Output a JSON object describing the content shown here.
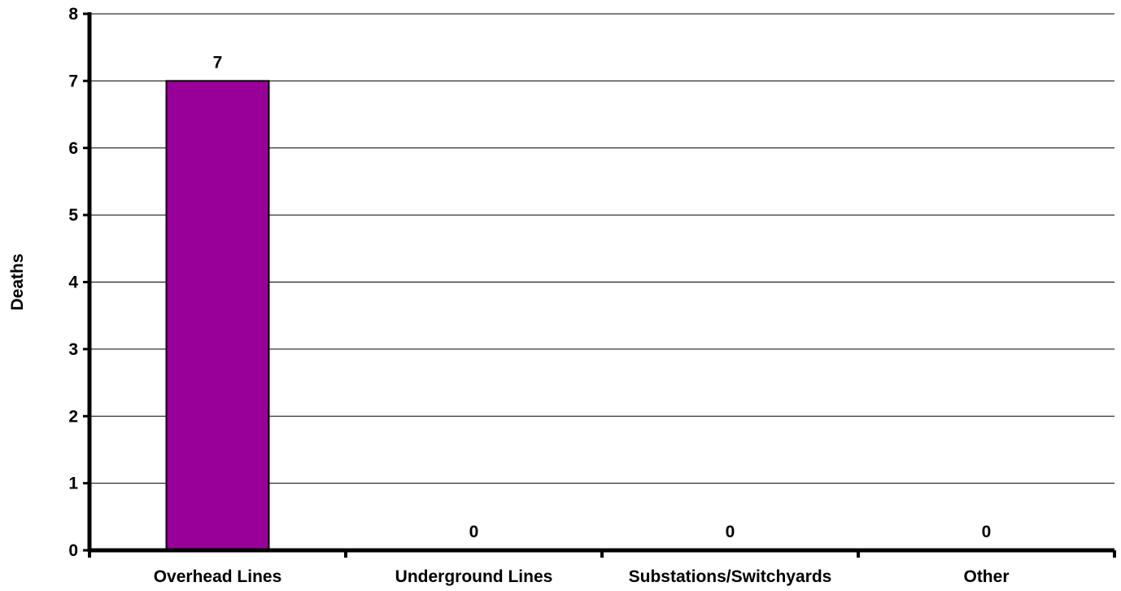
{
  "chart_data": {
    "type": "bar",
    "title": "",
    "xlabel": "",
    "ylabel": "Deaths",
    "categories": [
      "Overhead Lines",
      "Underground Lines",
      "Substations/Switchyards",
      "Other"
    ],
    "values": [
      7,
      0,
      0,
      0
    ],
    "data_labels": [
      "7",
      "0",
      "0",
      "0"
    ],
    "ylim": [
      0,
      8
    ],
    "yticks": [
      0,
      1,
      2,
      3,
      4,
      5,
      6,
      7,
      8
    ],
    "grid": true,
    "legend": "none",
    "bar_color": "#990099",
    "bar_edge_color": "#000000"
  }
}
